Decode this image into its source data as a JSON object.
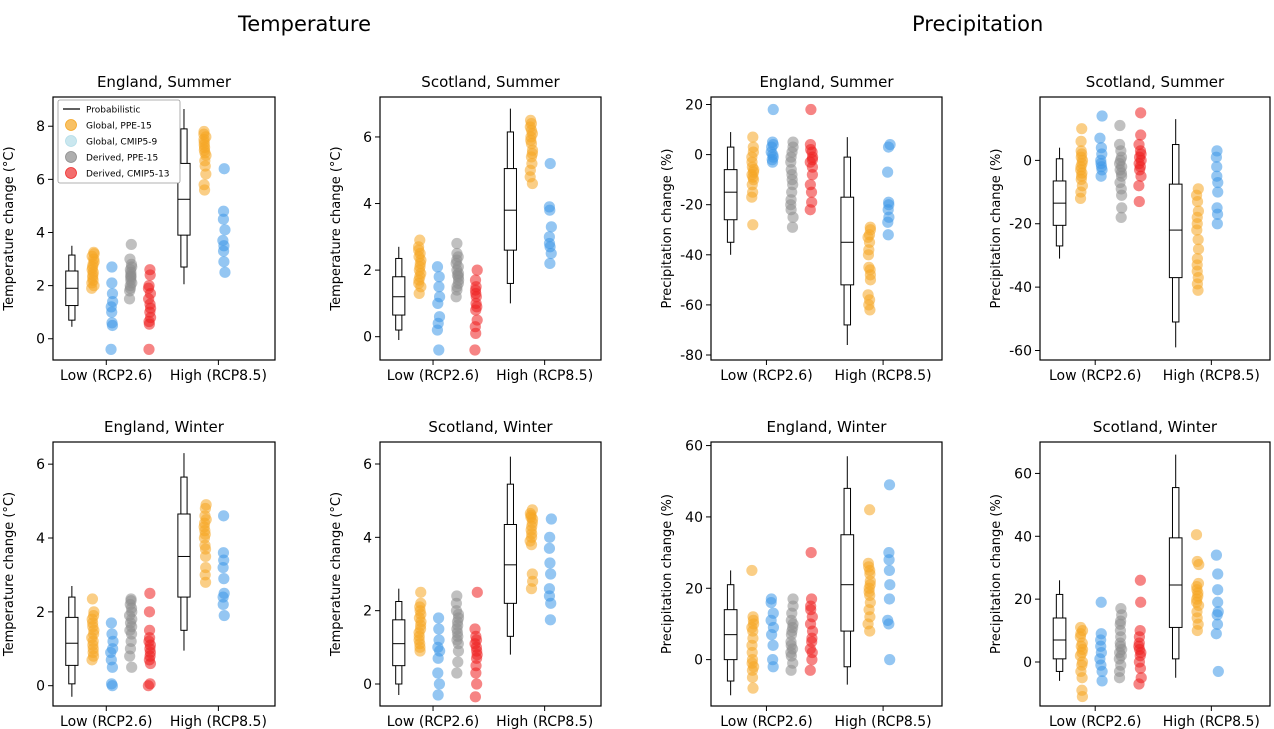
{
  "sections": [
    {
      "title": "Temperature"
    },
    {
      "title": "Precipitation"
    }
  ],
  "legend": {
    "items": [
      {
        "label": "Probabilistic",
        "kind": "line",
        "color": "#000000"
      },
      {
        "label": "Global, PPE-15",
        "kind": "dot",
        "color": "#f5a623"
      },
      {
        "label": "Global, CMIP5-9",
        "kind": "dot",
        "color": "#b3dde8"
      },
      {
        "label": "Derived, PPE-15",
        "kind": "dot",
        "color": "#8c8c8c"
      },
      {
        "label": "Derived, CMIP5-13",
        "kind": "dot",
        "color": "#ee2f2f"
      }
    ]
  },
  "series_colors": {
    "global_ppe": "#f5a623",
    "global_cmip": "#3d97e8",
    "derived_ppe": "#8c8c8c",
    "derived_cmip": "#ee1f1f"
  },
  "chart_data": [
    {
      "type": "box-strip",
      "title": "England, Summer",
      "ylabel": "Temperature change (°C)",
      "categories": [
        "Low (RCP2.6)",
        "High (RCP8.5)"
      ],
      "ylim": [
        -0.8,
        9.1
      ],
      "yticks": [
        0,
        2,
        4,
        6,
        8
      ],
      "groups": [
        {
          "box": {
            "p5": 0.45,
            "p10": 0.7,
            "p25": 1.25,
            "median": 1.9,
            "p75": 2.55,
            "p90": 3.15,
            "p95": 3.5
          },
          "global_ppe": [
            1.9,
            2.0,
            2.1,
            2.2,
            2.3,
            2.4,
            2.5,
            2.6,
            2.7,
            2.8,
            2.9,
            3.0,
            3.1,
            3.2,
            3.25
          ],
          "global_cmip": [
            -0.4,
            0.5,
            0.6,
            1.0,
            1.2,
            1.4,
            1.7,
            2.1,
            2.7
          ],
          "derived_ppe": [
            1.5,
            1.8,
            1.9,
            2.0,
            2.1,
            2.2,
            2.3,
            2.35,
            2.4,
            2.5,
            2.6,
            2.7,
            2.8,
            3.0,
            3.55
          ],
          "derived_cmip": [
            -0.4,
            0.55,
            0.65,
            0.8,
            1.0,
            1.15,
            1.3,
            1.5,
            1.7,
            1.9,
            2.0,
            2.4,
            2.6
          ]
        },
        {
          "box": {
            "p5": 2.05,
            "p10": 2.7,
            "p25": 3.9,
            "median": 5.25,
            "p75": 6.6,
            "p90": 7.9,
            "p95": 8.65
          },
          "global_ppe": [
            5.6,
            5.8,
            6.2,
            6.5,
            6.7,
            6.9,
            7.0,
            7.1,
            7.2,
            7.3,
            7.4,
            7.5,
            7.6,
            7.7,
            7.8
          ],
          "global_cmip": [
            2.5,
            2.9,
            3.3,
            3.5,
            3.7,
            4.1,
            4.5,
            4.8,
            6.4
          ]
        }
      ]
    },
    {
      "type": "box-strip",
      "title": "Scotland, Summer",
      "ylabel": "Temperature change (°C)",
      "categories": [
        "Low (RCP2.6)",
        "High (RCP8.5)"
      ],
      "ylim": [
        -0.7,
        7.2
      ],
      "yticks": [
        0,
        2,
        4,
        6
      ],
      "groups": [
        {
          "box": {
            "p5": -0.1,
            "p10": 0.2,
            "p25": 0.65,
            "median": 1.2,
            "p75": 1.8,
            "p90": 2.35,
            "p95": 2.7
          },
          "global_ppe": [
            1.3,
            1.5,
            1.6,
            1.7,
            1.8,
            1.9,
            2.0,
            2.1,
            2.2,
            2.3,
            2.4,
            2.5,
            2.6,
            2.7,
            2.9
          ],
          "global_cmip": [
            -0.4,
            0.2,
            0.4,
            0.6,
            1.0,
            1.2,
            1.5,
            1.8,
            2.1
          ],
          "derived_ppe": [
            1.2,
            1.4,
            1.5,
            1.6,
            1.7,
            1.8,
            1.85,
            1.9,
            2.0,
            2.1,
            2.2,
            2.3,
            2.4,
            2.5,
            2.8
          ],
          "derived_cmip": [
            -0.4,
            0.1,
            0.3,
            0.5,
            0.8,
            0.9,
            1.0,
            1.2,
            1.3,
            1.4,
            1.5,
            1.7,
            2.0
          ]
        },
        {
          "box": {
            "p5": 1.0,
            "p10": 1.6,
            "p25": 2.6,
            "median": 3.8,
            "p75": 5.05,
            "p90": 6.15,
            "p95": 6.85
          },
          "global_ppe": [
            4.6,
            4.8,
            5.0,
            5.2,
            5.4,
            5.5,
            5.6,
            5.8,
            5.9,
            6.0,
            6.1,
            6.2,
            6.3,
            6.4,
            6.5
          ],
          "global_cmip": [
            2.2,
            2.5,
            2.7,
            2.8,
            3.0,
            3.3,
            3.8,
            3.9,
            5.2
          ]
        }
      ]
    },
    {
      "type": "box-strip",
      "title": "England, Summer",
      "ylabel": "Precipitation change (%)",
      "categories": [
        "Low (RCP2.6)",
        "High (RCP8.5)"
      ],
      "ylim": [
        -82,
        23
      ],
      "yticks": [
        -80,
        -60,
        -40,
        -20,
        0,
        20
      ],
      "groups": [
        {
          "box": {
            "p5": -40,
            "p10": -35,
            "p25": -26,
            "median": -15,
            "p75": -6,
            "p90": 3,
            "p95": 9
          },
          "global_ppe": [
            -28,
            -17,
            -15,
            -12,
            -10,
            -9,
            -8,
            -7,
            -6,
            -5,
            -3,
            -1,
            1,
            3,
            7
          ],
          "global_cmip": [
            -3,
            -2,
            -1,
            0,
            1,
            3,
            4,
            5,
            18
          ],
          "derived_ppe": [
            -29,
            -25,
            -22,
            -20,
            -18,
            -15,
            -12,
            -10,
            -8,
            -6,
            -3,
            -1,
            1,
            3,
            5
          ],
          "derived_cmip": [
            -22,
            -19,
            -15,
            -12,
            -8,
            -5,
            -3,
            -2,
            -1,
            1,
            2,
            4,
            18
          ]
        },
        {
          "box": {
            "p5": -76,
            "p10": -68,
            "p25": -52,
            "median": -35,
            "p75": -17,
            "p90": -1,
            "p95": 7
          },
          "global_ppe": [
            -62,
            -60,
            -58,
            -56,
            -50,
            -48,
            -46,
            -45,
            -40,
            -38,
            -35,
            -33,
            -32,
            -30,
            -29
          ],
          "global_cmip": [
            -32,
            -27,
            -25,
            -22,
            -20,
            -19,
            -7,
            3,
            4
          ]
        }
      ]
    },
    {
      "type": "box-strip",
      "title": "Scotland, Summer",
      "ylabel": "Precipitation change (%)",
      "categories": [
        "Low (RCP2.6)",
        "High (RCP8.5)"
      ],
      "ylim": [
        -63,
        20
      ],
      "yticks": [
        -60,
        -40,
        -20,
        0
      ],
      "groups": [
        {
          "box": {
            "p5": -31,
            "p10": -27,
            "p25": -20.5,
            "median": -13.5,
            "p75": -6.5,
            "p90": 0.5,
            "p95": 4
          },
          "global_ppe": [
            -12,
            -10,
            -8,
            -6,
            -5,
            -4,
            -3,
            -2,
            -1,
            0,
            1,
            2,
            3,
            6,
            10
          ],
          "global_cmip": [
            -5,
            -3,
            -2,
            -1,
            0,
            2,
            4,
            7,
            14
          ],
          "derived_ppe": [
            -18,
            -15,
            -11,
            -9,
            -7,
            -5,
            -4,
            -3,
            -2,
            -1,
            0,
            1,
            3,
            5,
            11
          ],
          "derived_cmip": [
            -13,
            -8,
            -5,
            -3,
            -2,
            -1,
            0,
            1,
            2,
            3,
            5,
            8,
            15
          ]
        },
        {
          "box": {
            "p5": -59,
            "p10": -51,
            "p25": -37,
            "median": -22,
            "p75": -7.5,
            "p90": 5,
            "p95": 13
          },
          "global_ppe": [
            -41,
            -39,
            -37,
            -35,
            -33,
            -31,
            -28,
            -25,
            -22,
            -20,
            -18,
            -16,
            -13,
            -11,
            -9
          ],
          "global_cmip": [
            -20,
            -17,
            -15,
            -10,
            -7,
            -5,
            -2,
            1,
            3
          ]
        }
      ]
    },
    {
      "type": "box-strip",
      "title": "England, Winter",
      "ylabel": "Temperature change (°C)",
      "categories": [
        "Low (RCP2.6)",
        "High (RCP8.5)"
      ],
      "ylim": [
        -0.55,
        6.6
      ],
      "yticks": [
        0,
        2,
        4,
        6
      ],
      "groups": [
        {
          "box": {
            "p5": -0.3,
            "p10": 0.05,
            "p25": 0.55,
            "median": 1.15,
            "p75": 1.85,
            "p90": 2.4,
            "p95": 2.7
          },
          "global_ppe": [
            0.7,
            0.8,
            0.9,
            1.0,
            1.1,
            1.2,
            1.3,
            1.4,
            1.5,
            1.6,
            1.7,
            1.8,
            1.9,
            2.0,
            2.35
          ],
          "global_cmip": [
            0.0,
            0.05,
            0.5,
            0.7,
            0.9,
            1.0,
            1.2,
            1.4,
            1.7
          ],
          "derived_ppe": [
            0.5,
            0.8,
            1.0,
            1.2,
            1.4,
            1.5,
            1.6,
            1.7,
            1.8,
            1.9,
            2.0,
            2.1,
            2.2,
            2.3,
            2.35
          ],
          "derived_cmip": [
            0.0,
            0.05,
            0.6,
            0.7,
            0.8,
            0.9,
            1.0,
            1.1,
            1.2,
            1.3,
            1.5,
            2.0,
            2.5
          ]
        },
        {
          "box": {
            "p5": 0.95,
            "p10": 1.5,
            "p25": 2.4,
            "median": 3.5,
            "p75": 4.65,
            "p90": 5.65,
            "p95": 6.3
          },
          "global_ppe": [
            2.8,
            3.0,
            3.2,
            3.5,
            3.7,
            3.8,
            4.0,
            4.1,
            4.2,
            4.3,
            4.4,
            4.5,
            4.6,
            4.8,
            4.9
          ],
          "global_cmip": [
            1.9,
            2.2,
            2.4,
            2.5,
            2.9,
            3.2,
            3.4,
            3.6,
            4.6
          ]
        }
      ]
    },
    {
      "type": "box-strip",
      "title": "Scotland, Winter",
      "ylabel": "Temperature change (°C)",
      "categories": [
        "Low (RCP2.6)",
        "High (RCP8.5)"
      ],
      "ylim": [
        -0.6,
        6.6
      ],
      "yticks": [
        0,
        2,
        4,
        6
      ],
      "groups": [
        {
          "box": {
            "p5": -0.3,
            "p10": 0.0,
            "p25": 0.5,
            "median": 1.1,
            "p75": 1.75,
            "p90": 2.25,
            "p95": 2.6
          },
          "global_ppe": [
            0.9,
            1.0,
            1.1,
            1.2,
            1.3,
            1.4,
            1.5,
            1.6,
            1.7,
            1.8,
            1.9,
            2.0,
            2.1,
            2.2,
            2.5
          ],
          "global_cmip": [
            -0.3,
            0.0,
            0.3,
            0.7,
            0.9,
            1.0,
            1.2,
            1.5,
            1.8
          ],
          "derived_ppe": [
            0.3,
            0.6,
            0.9,
            1.1,
            1.2,
            1.3,
            1.4,
            1.5,
            1.6,
            1.7,
            1.8,
            1.9,
            2.0,
            2.2,
            2.4
          ],
          "derived_cmip": [
            -0.35,
            0.0,
            0.3,
            0.5,
            0.7,
            0.8,
            0.9,
            1.0,
            1.1,
            1.2,
            1.3,
            1.5,
            2.5
          ]
        },
        {
          "box": {
            "p5": 0.8,
            "p10": 1.3,
            "p25": 2.2,
            "median": 3.25,
            "p75": 4.35,
            "p90": 5.45,
            "p95": 6.2
          },
          "global_ppe": [
            2.6,
            2.8,
            3.0,
            3.8,
            3.9,
            4.0,
            4.1,
            4.2,
            4.3,
            4.4,
            4.5,
            4.55,
            4.6,
            4.65,
            4.75
          ],
          "global_cmip": [
            1.75,
            2.2,
            2.4,
            2.6,
            3.0,
            3.3,
            3.7,
            4.0,
            4.5
          ]
        }
      ]
    },
    {
      "type": "box-strip",
      "title": "England, Winter",
      "ylabel": "Precipitation change (%)",
      "categories": [
        "Low (RCP2.6)",
        "High (RCP8.5)"
      ],
      "ylim": [
        -13,
        61
      ],
      "yticks": [
        0,
        20,
        40,
        60
      ],
      "groups": [
        {
          "box": {
            "p5": -10,
            "p10": -6,
            "p25": 0,
            "median": 7,
            "p75": 14,
            "p90": 21,
            "p95": 25
          },
          "global_ppe": [
            -8,
            -5,
            -3,
            -2,
            -1,
            0,
            2,
            4,
            6,
            8,
            9,
            10,
            11,
            12,
            25
          ],
          "global_cmip": [
            -2,
            0,
            4,
            7,
            9,
            11,
            13,
            16,
            17
          ],
          "derived_ppe": [
            -3,
            -1,
            1,
            2,
            3,
            4,
            5,
            7,
            8,
            9,
            10,
            11,
            13,
            15,
            17
          ],
          "derived_cmip": [
            -3,
            0,
            2,
            3,
            5,
            6,
            8,
            10,
            12,
            14,
            15,
            17,
            30
          ]
        },
        {
          "box": {
            "p5": -7,
            "p10": -2,
            "p25": 8,
            "median": 21,
            "p75": 35,
            "p90": 48,
            "p95": 57
          },
          "global_ppe": [
            8,
            10,
            12,
            14,
            16,
            18,
            19,
            20,
            21,
            22,
            24,
            25,
            26,
            27,
            42
          ],
          "global_cmip": [
            0,
            10,
            11,
            17,
            21,
            25,
            28,
            30,
            49
          ]
        }
      ]
    },
    {
      "type": "box-strip",
      "title": "Scotland, Winter",
      "ylabel": "Precipitation change (%)",
      "categories": [
        "Low (RCP2.6)",
        "High (RCP8.5)"
      ],
      "ylim": [
        -14,
        70
      ],
      "yticks": [
        0,
        20,
        40,
        60
      ],
      "groups": [
        {
          "box": {
            "p5": -6,
            "p10": -3,
            "p25": 1,
            "median": 7,
            "p75": 14,
            "p90": 21.5,
            "p95": 26
          },
          "global_ppe": [
            -11,
            -9,
            -5,
            -3,
            -1,
            0,
            2,
            3,
            4,
            5,
            6,
            8,
            9,
            10,
            11
          ],
          "global_cmip": [
            -6,
            -3,
            -1,
            1,
            3,
            5,
            7,
            9,
            19
          ],
          "derived_ppe": [
            -5,
            -3,
            -1,
            1,
            2,
            3,
            4,
            5,
            6,
            8,
            10,
            12,
            13,
            15,
            17
          ],
          "derived_cmip": [
            -7,
            -5,
            -2,
            0,
            2,
            3,
            4,
            5,
            6,
            8,
            10,
            19,
            26
          ]
        },
        {
          "box": {
            "p5": -5,
            "p10": 1,
            "p25": 11,
            "median": 24.5,
            "p75": 39.5,
            "p90": 55.5,
            "p95": 66
          },
          "global_ppe": [
            10,
            12,
            14,
            16,
            18,
            19,
            20,
            21,
            22,
            23,
            24,
            25,
            31,
            32,
            40.5
          ],
          "global_cmip": [
            -3,
            9,
            12,
            15,
            16,
            19,
            23,
            28,
            34
          ]
        }
      ]
    }
  ]
}
